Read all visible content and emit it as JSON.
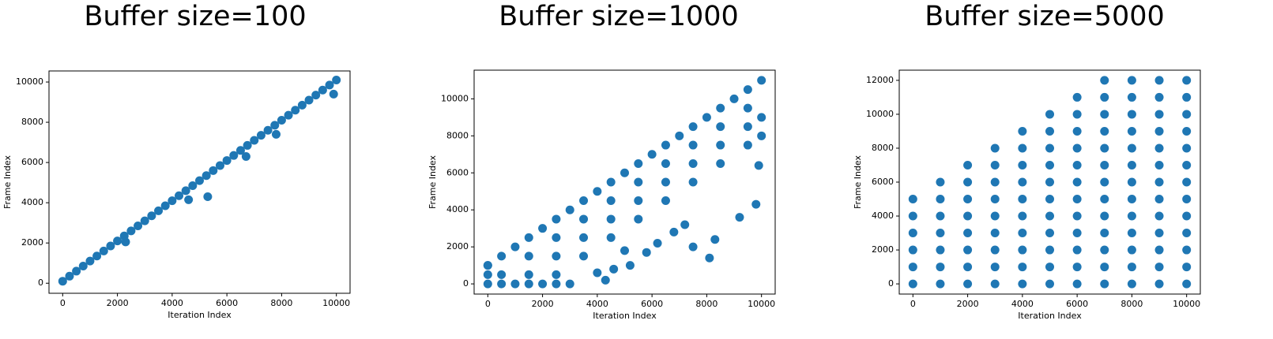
{
  "chart_data": [
    {
      "type": "scatter",
      "title": "Buffer size=100",
      "x_label": "Iteration Index",
      "y_label": "Frame Index",
      "color": "#1f77b4",
      "x": [
        0,
        250,
        500,
        750,
        1000,
        1250,
        1500,
        1750,
        2000,
        2250,
        2500,
        2750,
        3000,
        3250,
        3500,
        3750,
        4000,
        4250,
        4500,
        4750,
        5000,
        5250,
        5500,
        5750,
        6000,
        6250,
        6500,
        6750,
        7000,
        7250,
        7500,
        7750,
        8000,
        8250,
        8500,
        8750,
        9000,
        9250,
        9500,
        9750,
        10000,
        5300,
        4600,
        6700,
        9900,
        2300,
        7800
      ],
      "values": [
        100,
        350,
        600,
        850,
        1100,
        1350,
        1600,
        1850,
        2100,
        2350,
        2600,
        2850,
        3100,
        3350,
        3600,
        3850,
        4100,
        4350,
        4600,
        4850,
        5100,
        5350,
        5600,
        5850,
        6100,
        6350,
        6600,
        6850,
        7100,
        7350,
        7600,
        7850,
        8100,
        8350,
        8600,
        8850,
        9100,
        9350,
        9600,
        9850,
        10100,
        4300,
        4150,
        6300,
        9400,
        2050,
        7400
      ],
      "xlim": [
        -500,
        10500
      ],
      "ylim": [
        -500,
        10550
      ],
      "xticks": [
        0,
        2000,
        4000,
        6000,
        8000,
        10000
      ],
      "yticks": [
        0,
        2000,
        4000,
        6000,
        8000,
        10000
      ]
    },
    {
      "type": "scatter",
      "title": "Buffer size=1000",
      "x_label": "Iteration Index",
      "y_label": "Frame Index",
      "color": "#1f77b4",
      "x": [
        0,
        500,
        1000,
        1500,
        2000,
        2500,
        3000,
        3500,
        4000,
        4500,
        5000,
        5500,
        6000,
        6500,
        7000,
        7500,
        8000,
        8500,
        9000,
        9500,
        10000,
        0,
        500,
        1000,
        1500,
        2000,
        2500,
        3000,
        0,
        0,
        10000,
        10000,
        500,
        1500,
        1500,
        2500,
        2500,
        2500,
        3500,
        3500,
        3500,
        4500,
        4500,
        4500,
        5500,
        5500,
        5500,
        6500,
        6500,
        6500,
        7500,
        7500,
        7500,
        8500,
        8500,
        8500,
        9500,
        9500,
        9500,
        4300,
        4600,
        5200,
        5800,
        6200,
        7500,
        8100,
        8300,
        7200,
        6800,
        9200,
        9800,
        9900,
        5000,
        4000
      ],
      "values": [
        1000,
        1500,
        2000,
        2500,
        3000,
        3500,
        4000,
        4500,
        5000,
        5500,
        6000,
        6500,
        7000,
        7500,
        8000,
        8500,
        9000,
        9500,
        10000,
        10500,
        11000,
        0,
        0,
        0,
        0,
        0,
        0,
        0,
        500,
        1000,
        9000,
        8000,
        500,
        500,
        1500,
        500,
        1500,
        2500,
        1500,
        2500,
        3500,
        2500,
        3500,
        4500,
        3500,
        4500,
        5500,
        4500,
        5500,
        6500,
        5500,
        6500,
        7500,
        6500,
        7500,
        8500,
        7500,
        8500,
        9500,
        200,
        800,
        1000,
        1700,
        2200,
        2000,
        1400,
        2400,
        3200,
        2800,
        3600,
        4300,
        6400,
        1800,
        600
      ],
      "xlim": [
        -500,
        10500
      ],
      "ylim": [
        -550,
        11550
      ],
      "xticks": [
        0,
        2000,
        4000,
        6000,
        8000,
        10000
      ],
      "yticks": [
        0,
        2000,
        4000,
        6000,
        8000,
        10000
      ]
    },
    {
      "type": "scatter",
      "title": "Buffer size=5000",
      "x_label": "Iteration Index",
      "y_label": "Frame Index",
      "color": "#1f77b4",
      "x": [
        0,
        0,
        0,
        0,
        0,
        0,
        1000,
        1000,
        1000,
        1000,
        1000,
        1000,
        1000,
        2000,
        2000,
        2000,
        2000,
        2000,
        2000,
        2000,
        2000,
        3000,
        3000,
        3000,
        3000,
        3000,
        3000,
        3000,
        3000,
        3000,
        4000,
        4000,
        4000,
        4000,
        4000,
        4000,
        4000,
        4000,
        4000,
        4000,
        5000,
        5000,
        5000,
        5000,
        5000,
        5000,
        5000,
        5000,
        5000,
        5000,
        5000,
        6000,
        6000,
        6000,
        6000,
        6000,
        6000,
        6000,
        6000,
        6000,
        6000,
        6000,
        6000,
        7000,
        7000,
        7000,
        7000,
        7000,
        7000,
        7000,
        7000,
        7000,
        7000,
        7000,
        7000,
        7000,
        8000,
        8000,
        8000,
        8000,
        8000,
        8000,
        8000,
        8000,
        8000,
        8000,
        8000,
        8000,
        8000,
        9000,
        9000,
        9000,
        9000,
        9000,
        9000,
        9000,
        9000,
        9000,
        9000,
        9000,
        9000,
        9000,
        10000,
        10000,
        10000,
        10000,
        10000,
        10000,
        10000,
        10000,
        10000,
        10000,
        10000,
        10000,
        10000
      ],
      "values": [
        0,
        1000,
        2000,
        3000,
        4000,
        5000,
        0,
        1000,
        2000,
        3000,
        4000,
        5000,
        6000,
        0,
        1000,
        2000,
        3000,
        4000,
        5000,
        6000,
        7000,
        0,
        1000,
        2000,
        3000,
        4000,
        5000,
        6000,
        7000,
        8000,
        0,
        1000,
        2000,
        3000,
        4000,
        5000,
        6000,
        7000,
        8000,
        9000,
        0,
        1000,
        2000,
        3000,
        4000,
        5000,
        6000,
        7000,
        8000,
        9000,
        10000,
        0,
        1000,
        2000,
        3000,
        4000,
        5000,
        6000,
        7000,
        8000,
        9000,
        10000,
        11000,
        0,
        1000,
        2000,
        3000,
        4000,
        5000,
        6000,
        7000,
        8000,
        9000,
        10000,
        11000,
        12000,
        0,
        1000,
        2000,
        3000,
        4000,
        5000,
        6000,
        7000,
        8000,
        9000,
        10000,
        11000,
        12000,
        0,
        1000,
        2000,
        3000,
        4000,
        5000,
        6000,
        7000,
        8000,
        9000,
        10000,
        11000,
        12000,
        0,
        1000,
        2000,
        3000,
        4000,
        5000,
        6000,
        7000,
        8000,
        9000,
        10000,
        11000,
        12000
      ],
      "xlim": [
        -500,
        10500
      ],
      "ylim": [
        -600,
        12600
      ],
      "xticks": [
        0,
        2000,
        4000,
        6000,
        8000,
        10000
      ],
      "yticks": [
        0,
        2000,
        4000,
        6000,
        8000,
        10000,
        12000
      ]
    }
  ]
}
